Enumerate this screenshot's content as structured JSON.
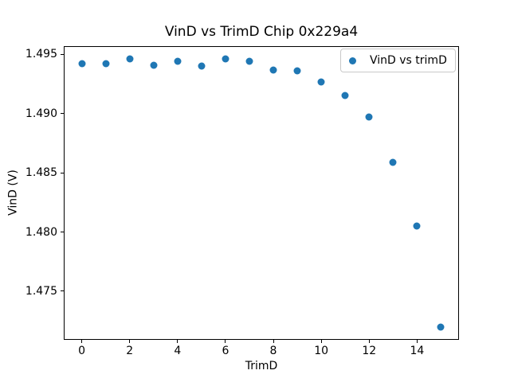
{
  "chart_data": {
    "type": "scatter",
    "title": "VinD vs TrimD Chip 0x229a4",
    "xlabel": "TrimD",
    "ylabel": "VinD (V)",
    "x": [
      0,
      1,
      2,
      3,
      4,
      5,
      6,
      7,
      8,
      9,
      10,
      11,
      12,
      13,
      14,
      15
    ],
    "y": [
      1.4942,
      1.4942,
      1.4946,
      1.4941,
      1.4944,
      1.494,
      1.4946,
      1.4944,
      1.4937,
      1.4936,
      1.4927,
      1.4915,
      1.4897,
      1.4859,
      1.4805,
      1.472
    ],
    "xlim": [
      -0.75,
      15.75
    ],
    "ylim": [
      1.4709,
      1.4957
    ],
    "xticks": [
      0,
      2,
      4,
      6,
      8,
      10,
      12,
      14
    ],
    "xticklabels": [
      "0",
      "2",
      "4",
      "6",
      "8",
      "10",
      "12",
      "14"
    ],
    "yticks": [
      1.475,
      1.48,
      1.485,
      1.49,
      1.495
    ],
    "yticklabels": [
      "1.475",
      "1.480",
      "1.485",
      "1.490",
      "1.495"
    ],
    "grid": false,
    "legend": {
      "position": "upper right",
      "entries": [
        {
          "label": "VinD vs trimD",
          "marker": "circle-icon",
          "color": "#1f77b4"
        }
      ]
    },
    "marker_color": "#1f77b4",
    "spine_color": "#000000",
    "background_color": "#ffffff"
  }
}
